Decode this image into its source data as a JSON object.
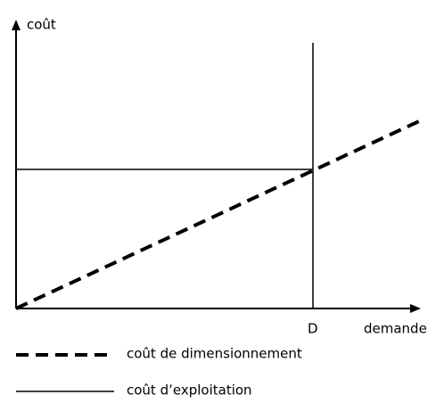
{
  "axes": {
    "y_label": "coût",
    "x_label": "demande"
  },
  "marker": "D",
  "legend": [
    {
      "label": "coût de dimensionnement"
    },
    {
      "label": "coût d’exploitation"
    }
  ]
}
